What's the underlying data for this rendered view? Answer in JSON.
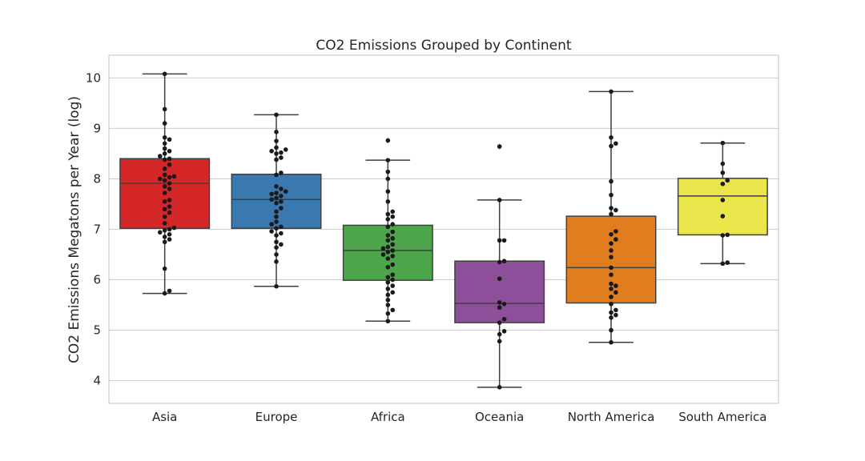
{
  "chart_data": {
    "type": "box",
    "title": "CO2 Emissions Grouped by Continent",
    "xlabel": "",
    "ylabel": "CO2 Emissions Megatons per Year (log)",
    "ylim": [
      3.55,
      10.45
    ],
    "yticks": [
      4,
      5,
      6,
      7,
      8,
      9,
      10
    ],
    "grid": true,
    "categories": [
      "Asia",
      "Europe",
      "Africa",
      "Oceania",
      "North America",
      "South America"
    ],
    "colors": [
      "#d62728",
      "#3a78b0",
      "#4ea64a",
      "#8e4f9a",
      "#e07e1f",
      "#e9e54b"
    ],
    "boxes": [
      {
        "whisker_low": 5.73,
        "q1": 7.02,
        "median": 7.91,
        "q3": 8.4,
        "whisker_high": 10.08,
        "outliers": []
      },
      {
        "whisker_low": 5.87,
        "q1": 7.02,
        "median": 7.59,
        "q3": 8.09,
        "whisker_high": 9.27,
        "outliers": []
      },
      {
        "whisker_low": 5.18,
        "q1": 5.99,
        "median": 6.58,
        "q3": 7.08,
        "whisker_high": 8.37,
        "outliers": [
          8.76
        ]
      },
      {
        "whisker_low": 3.87,
        "q1": 5.15,
        "median": 5.53,
        "q3": 6.37,
        "whisker_high": 7.58,
        "outliers": [
          8.64
        ]
      },
      {
        "whisker_low": 4.76,
        "q1": 5.54,
        "median": 6.24,
        "q3": 7.26,
        "whisker_high": 9.73,
        "outliers": []
      },
      {
        "whisker_low": 6.32,
        "q1": 6.89,
        "median": 7.66,
        "q3": 8.01,
        "whisker_high": 8.71,
        "outliers": []
      }
    ],
    "points": [
      [
        10.08,
        9.38,
        9.1,
        8.82,
        8.78,
        8.7,
        8.6,
        8.55,
        8.5,
        8.45,
        8.4,
        8.38,
        8.28,
        8.2,
        8.08,
        8.05,
        8.03,
        8.0,
        7.97,
        7.91,
        7.85,
        7.8,
        7.72,
        7.58,
        7.55,
        7.45,
        7.4,
        7.33,
        7.25,
        7.12,
        7.03,
        7.0,
        6.98,
        6.94,
        6.9,
        6.85,
        6.8,
        6.75,
        6.22,
        5.78,
        5.73
      ],
      [
        9.27,
        8.93,
        8.75,
        8.62,
        8.58,
        8.55,
        8.52,
        8.5,
        8.42,
        8.38,
        8.12,
        8.08,
        7.85,
        7.8,
        7.75,
        7.72,
        7.7,
        7.66,
        7.62,
        7.59,
        7.55,
        7.52,
        7.42,
        7.35,
        7.25,
        7.15,
        7.1,
        7.05,
        7.02,
        6.96,
        6.92,
        6.88,
        6.75,
        6.7,
        6.64,
        6.5,
        6.36,
        5.87
      ],
      [
        8.76,
        8.37,
        8.14,
        8.0,
        7.75,
        7.55,
        7.35,
        7.3,
        7.25,
        7.2,
        7.1,
        7.05,
        6.95,
        6.88,
        6.82,
        6.78,
        6.7,
        6.65,
        6.62,
        6.58,
        6.55,
        6.5,
        6.47,
        6.42,
        6.3,
        6.25,
        6.1,
        6.05,
        6.0,
        5.95,
        5.88,
        5.82,
        5.75,
        5.7,
        5.6,
        5.5,
        5.4,
        5.33,
        5.18
      ],
      [
        8.64,
        7.58,
        6.78,
        6.78,
        6.37,
        6.35,
        6.02,
        5.55,
        5.52,
        5.45,
        5.22,
        5.15,
        4.98,
        4.92,
        4.78,
        3.87
      ],
      [
        9.73,
        8.82,
        8.7,
        8.65,
        7.95,
        7.68,
        7.42,
        7.38,
        7.3,
        6.96,
        6.9,
        6.8,
        6.72,
        6.58,
        6.45,
        6.24,
        6.1,
        5.92,
        5.88,
        5.82,
        5.75,
        5.66,
        5.52,
        5.4,
        5.35,
        5.3,
        5.25,
        5.0,
        4.76
      ],
      [
        8.71,
        8.3,
        8.12,
        7.97,
        7.9,
        7.58,
        7.26,
        6.89,
        6.88,
        6.34,
        6.32
      ]
    ]
  }
}
